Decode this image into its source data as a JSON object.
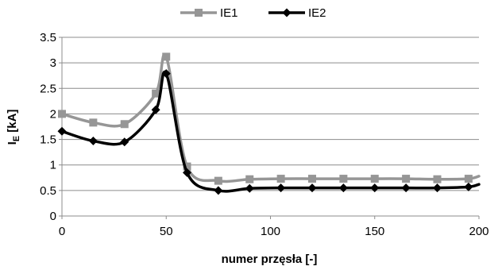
{
  "chart_data": {
    "type": "line",
    "title": "",
    "xlabel": "numer przęsła [-]",
    "ylabel": {
      "main": "I",
      "sub": "E",
      "unit": " [kA]"
    },
    "xlim": [
      0,
      200
    ],
    "ylim": [
      0,
      3.5
    ],
    "x_ticks": [
      0,
      50,
      100,
      150,
      200
    ],
    "y_ticks": [
      0,
      0.5,
      1,
      1.5,
      2,
      2.5,
      3,
      3.5
    ],
    "y_tick_labels": [
      "0",
      "0.5",
      "1",
      "1.5",
      "2",
      "2.5",
      "3",
      "3.5"
    ],
    "grid": "horizontal",
    "legend_position": "top",
    "series": [
      {
        "name": "IE1",
        "color": "#969696",
        "marker": "square",
        "x": [
          0,
          15,
          30,
          45,
          50,
          60,
          75,
          90,
          105,
          120,
          135,
          150,
          165,
          180,
          195,
          200
        ],
        "y": [
          2.0,
          1.83,
          1.8,
          2.4,
          3.12,
          0.97,
          0.69,
          0.72,
          0.73,
          0.73,
          0.73,
          0.73,
          0.73,
          0.72,
          0.73,
          0.78
        ]
      },
      {
        "name": "IE2",
        "color": "#000000",
        "marker": "diamond",
        "x": [
          0,
          15,
          30,
          45,
          50,
          60,
          75,
          90,
          105,
          120,
          135,
          150,
          165,
          180,
          195,
          200
        ],
        "y": [
          1.66,
          1.47,
          1.45,
          2.08,
          2.79,
          0.85,
          0.5,
          0.54,
          0.55,
          0.55,
          0.55,
          0.55,
          0.55,
          0.55,
          0.57,
          0.62
        ]
      }
    ]
  }
}
